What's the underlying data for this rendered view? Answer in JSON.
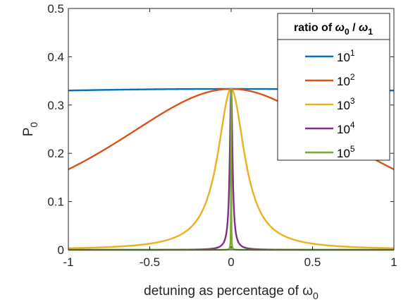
{
  "chart_data": {
    "type": "line",
    "xlabel": "detuning as percentage of ",
    "xlabel_symbol": "ω",
    "xlabel_subscript": "0",
    "ylabel": "P",
    "ylabel_subscript": "0",
    "xlim": [
      -1,
      1
    ],
    "ylim": [
      0,
      0.5
    ],
    "xticks": [
      "-1",
      "-0.5",
      "0",
      "0.5",
      "1"
    ],
    "yticks": [
      "0",
      "0.1",
      "0.2",
      "0.3",
      "0.4",
      "0.5"
    ],
    "grid": false,
    "legend": {
      "placement": "top-right",
      "title_prefix": "ratio of ",
      "title_sym1": "ω",
      "title_sub1": "0",
      "title_sep": " / ",
      "title_sym2": "ω",
      "title_sub2": "1"
    },
    "series": [
      {
        "name": "10",
        "exp": "1",
        "color": "#0072BD",
        "ratio": 10
      },
      {
        "name": "10",
        "exp": "2",
        "color": "#D95319",
        "ratio": 100
      },
      {
        "name": "10",
        "exp": "3",
        "color": "#EDB120",
        "ratio": 1000
      },
      {
        "name": "10",
        "exp": "4",
        "color": "#7E2F8E",
        "ratio": 10000
      },
      {
        "name": "10",
        "exp": "5",
        "color": "#77AC30",
        "ratio": 100000
      }
    ]
  }
}
